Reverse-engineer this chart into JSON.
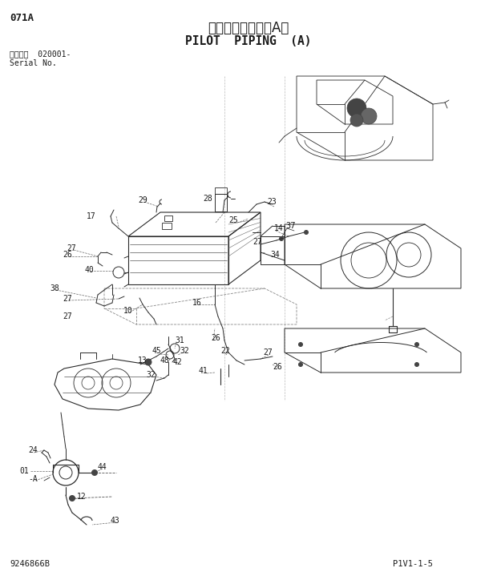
{
  "title_japanese": "パイロット配管（A）",
  "title_english": "PILOT  PIPING  (A)",
  "page_code": "071A",
  "serial_label": "適用号機  020001-",
  "serial_label2": "Serial No.",
  "drawing_number": "9246866B",
  "page_number": "P1V1-1-5",
  "bg_color": "#ffffff",
  "text_color": "#1a1a1a",
  "line_color": "#2a2a2a",
  "gray_color": "#888888",
  "dark_color": "#444444"
}
